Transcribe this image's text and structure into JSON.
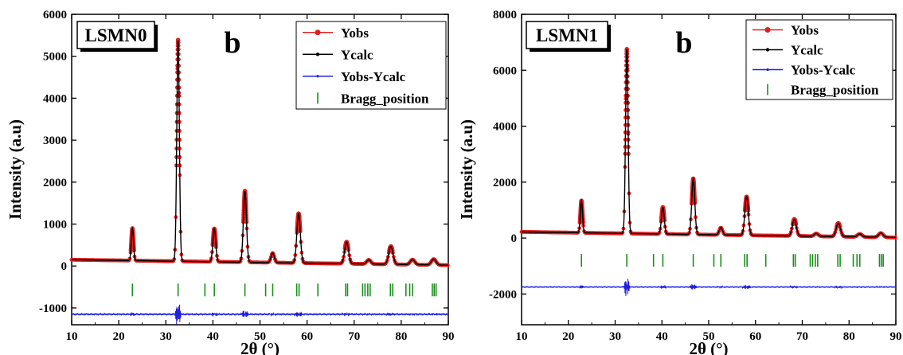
{
  "chart_data": [
    {
      "type": "line",
      "sample_label": "LSMN0",
      "panel_letter": "b",
      "xlabel": "2θ (°)",
      "ylabel": "Intensity (a.u)",
      "xlim": [
        10,
        90
      ],
      "ylim": [
        -1400,
        6000
      ],
      "xticks": [
        10,
        20,
        30,
        40,
        50,
        60,
        70,
        80,
        90
      ],
      "yticks": [
        -1000,
        0,
        1000,
        2000,
        3000,
        4000,
        5000,
        6000
      ],
      "baseline_start": 150,
      "baseline_end": 20,
      "peaks": [
        {
          "x": 22.9,
          "y": 770
        },
        {
          "x": 32.6,
          "y": 5280
        },
        {
          "x": 40.3,
          "y": 790
        },
        {
          "x": 46.8,
          "y": 1700
        },
        {
          "x": 52.7,
          "y": 230
        },
        {
          "x": 58.2,
          "y": 1180
        },
        {
          "x": 68.4,
          "y": 520
        },
        {
          "x": 73.1,
          "y": 100
        },
        {
          "x": 77.8,
          "y": 430
        },
        {
          "x": 82.4,
          "y": 120
        },
        {
          "x": 86.9,
          "y": 140
        }
      ],
      "difference_offset": -1150,
      "bragg_row_y": -570,
      "bragg_positions": [
        22.9,
        32.6,
        38.3,
        40.3,
        46.8,
        51.2,
        52.7,
        57.8,
        58.3,
        62.3,
        68.2,
        68.6,
        71.8,
        72.3,
        72.9,
        73.4,
        77.7,
        78.2,
        81.0,
        81.8,
        82.4,
        86.6,
        87.0,
        87.4
      ],
      "legend": [
        {
          "label": "Yobs",
          "color": "#e02020",
          "kind": "obs"
        },
        {
          "label": "Ycalc",
          "color": "#000000",
          "kind": "calc"
        },
        {
          "label": "Yobs-Ycalc",
          "color": "#1f1fe0",
          "kind": "diff"
        },
        {
          "label": "Bragg_position",
          "color": "#1a8f1a",
          "kind": "bragg"
        }
      ]
    },
    {
      "type": "line",
      "sample_label": "LSMN1",
      "panel_letter": "b",
      "xlabel": "2θ (°)",
      "ylabel": "Intensity (a.u)",
      "xlim": [
        10,
        90
      ],
      "ylim": [
        -3100,
        8000
      ],
      "xticks": [
        10,
        20,
        30,
        40,
        50,
        60,
        70,
        80,
        90
      ],
      "yticks": [
        -2000,
        0,
        2000,
        4000,
        6000,
        8000
      ],
      "baseline_start": 220,
      "baseline_end": 20,
      "peaks": [
        {
          "x": 22.8,
          "y": 1150
        },
        {
          "x": 32.5,
          "y": 6600
        },
        {
          "x": 40.2,
          "y": 960
        },
        {
          "x": 46.7,
          "y": 2000
        },
        {
          "x": 52.6,
          "y": 260
        },
        {
          "x": 58.1,
          "y": 1380
        },
        {
          "x": 68.3,
          "y": 600
        },
        {
          "x": 73.0,
          "y": 100
        },
        {
          "x": 77.7,
          "y": 480
        },
        {
          "x": 82.3,
          "y": 110
        },
        {
          "x": 86.8,
          "y": 150
        }
      ],
      "difference_offset": -1750,
      "bragg_row_y": -800,
      "bragg_positions": [
        22.8,
        32.5,
        38.2,
        40.2,
        46.7,
        51.1,
        52.6,
        57.7,
        58.2,
        62.2,
        68.1,
        68.5,
        71.7,
        72.2,
        72.8,
        73.3,
        77.6,
        78.1,
        80.9,
        81.7,
        82.3,
        86.5,
        86.9,
        87.3
      ],
      "legend": [
        {
          "label": "Yobs",
          "color": "#e02020",
          "kind": "obs"
        },
        {
          "label": "Ycalc",
          "color": "#000000",
          "kind": "calc"
        },
        {
          "label": "Yobs-Ycalc",
          "color": "#1f1fe0",
          "kind": "diff"
        },
        {
          "label": "Bragg_position",
          "color": "#1a8f1a",
          "kind": "bragg"
        }
      ]
    }
  ]
}
